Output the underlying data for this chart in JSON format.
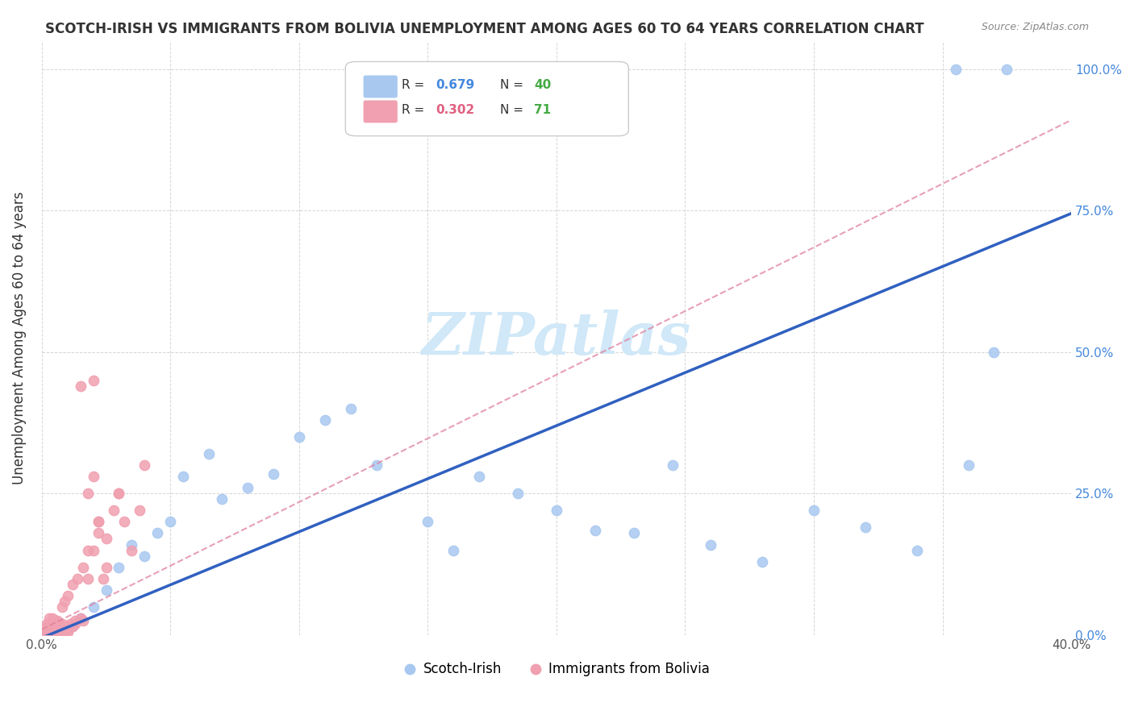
{
  "title": "SCOTCH-IRISH VS IMMIGRANTS FROM BOLIVIA UNEMPLOYMENT AMONG AGES 60 TO 64 YEARS CORRELATION CHART",
  "source": "Source: ZipAtlas.com",
  "ylabel": "Unemployment Among Ages 60 to 64 years",
  "xmin": 0.0,
  "xmax": 0.4,
  "ymin": 0.0,
  "ymax": 1.05,
  "x_ticks": [
    0.0,
    0.05,
    0.1,
    0.15,
    0.2,
    0.25,
    0.3,
    0.35,
    0.4
  ],
  "x_tick_labels": [
    "0.0%",
    "",
    "",
    "",
    "",
    "",
    "",
    "",
    "40.0%"
  ],
  "y_ticks": [
    0.0,
    0.25,
    0.5,
    0.75,
    1.0
  ],
  "y_tick_labels": [
    "0.0%",
    "25.0%",
    "50.0%",
    "75.0%",
    "100.0%"
  ],
  "scotch_irish_R": 0.679,
  "scotch_irish_N": 40,
  "bolivia_R": 0.302,
  "bolivia_N": 71,
  "scotch_irish_color": "#a8c8f0",
  "bolivia_color": "#f0a0b0",
  "scotch_irish_line_color": "#3060c0",
  "bolivia_line_color": "#e080a0",
  "legend_R_color_blue": "#4488dd",
  "legend_R_color_pink": "#e06080",
  "legend_N_color_green": "#44aa44",
  "watermark": "ZIPatlas",
  "watermark_color": "#d0e8f8",
  "scotch_irish_x": [
    0.001,
    0.003,
    0.005,
    0.007,
    0.009,
    0.012,
    0.015,
    0.02,
    0.025,
    0.03,
    0.035,
    0.04,
    0.045,
    0.05,
    0.055,
    0.065,
    0.07,
    0.08,
    0.09,
    0.1,
    0.11,
    0.12,
    0.13,
    0.15,
    0.16,
    0.17,
    0.185,
    0.2,
    0.215,
    0.23,
    0.245,
    0.26,
    0.28,
    0.3,
    0.32,
    0.34,
    0.36,
    0.375,
    0.355,
    0.37
  ],
  "scotch_irish_y": [
    0.005,
    0.008,
    0.003,
    0.01,
    0.005,
    0.015,
    0.03,
    0.05,
    0.08,
    0.12,
    0.16,
    0.14,
    0.18,
    0.2,
    0.28,
    0.32,
    0.24,
    0.26,
    0.285,
    0.35,
    0.38,
    0.4,
    0.3,
    0.2,
    0.15,
    0.28,
    0.25,
    0.22,
    0.185,
    0.18,
    0.3,
    0.16,
    0.13,
    0.22,
    0.19,
    0.15,
    0.3,
    1.0,
    1.0,
    0.5
  ],
  "bolivia_x": [
    0.001,
    0.001,
    0.002,
    0.002,
    0.002,
    0.003,
    0.003,
    0.003,
    0.003,
    0.004,
    0.004,
    0.004,
    0.004,
    0.005,
    0.005,
    0.005,
    0.005,
    0.006,
    0.006,
    0.006,
    0.007,
    0.007,
    0.007,
    0.008,
    0.008,
    0.008,
    0.009,
    0.009,
    0.01,
    0.01,
    0.01,
    0.011,
    0.012,
    0.013,
    0.013,
    0.015,
    0.016,
    0.018,
    0.02,
    0.022,
    0.022,
    0.024,
    0.025,
    0.028,
    0.03,
    0.032,
    0.035,
    0.038,
    0.04,
    0.02,
    0.015,
    0.025,
    0.03,
    0.018,
    0.02,
    0.022,
    0.008,
    0.009,
    0.01,
    0.012,
    0.014,
    0.016,
    0.018,
    0.003,
    0.004,
    0.005,
    0.006,
    0.007,
    0.008,
    0.002,
    0.003
  ],
  "bolivia_y": [
    0.005,
    0.01,
    0.005,
    0.01,
    0.015,
    0.005,
    0.01,
    0.015,
    0.02,
    0.005,
    0.01,
    0.015,
    0.02,
    0.005,
    0.01,
    0.015,
    0.025,
    0.005,
    0.01,
    0.02,
    0.005,
    0.01,
    0.015,
    0.005,
    0.01,
    0.015,
    0.005,
    0.01,
    0.005,
    0.01,
    0.015,
    0.02,
    0.015,
    0.02,
    0.025,
    0.03,
    0.025,
    0.1,
    0.15,
    0.18,
    0.2,
    0.1,
    0.12,
    0.22,
    0.25,
    0.2,
    0.15,
    0.22,
    0.3,
    0.45,
    0.44,
    0.17,
    0.25,
    0.25,
    0.28,
    0.2,
    0.05,
    0.06,
    0.07,
    0.09,
    0.1,
    0.12,
    0.15,
    0.03,
    0.03,
    0.025,
    0.025,
    0.02,
    0.02,
    0.02,
    0.015
  ]
}
